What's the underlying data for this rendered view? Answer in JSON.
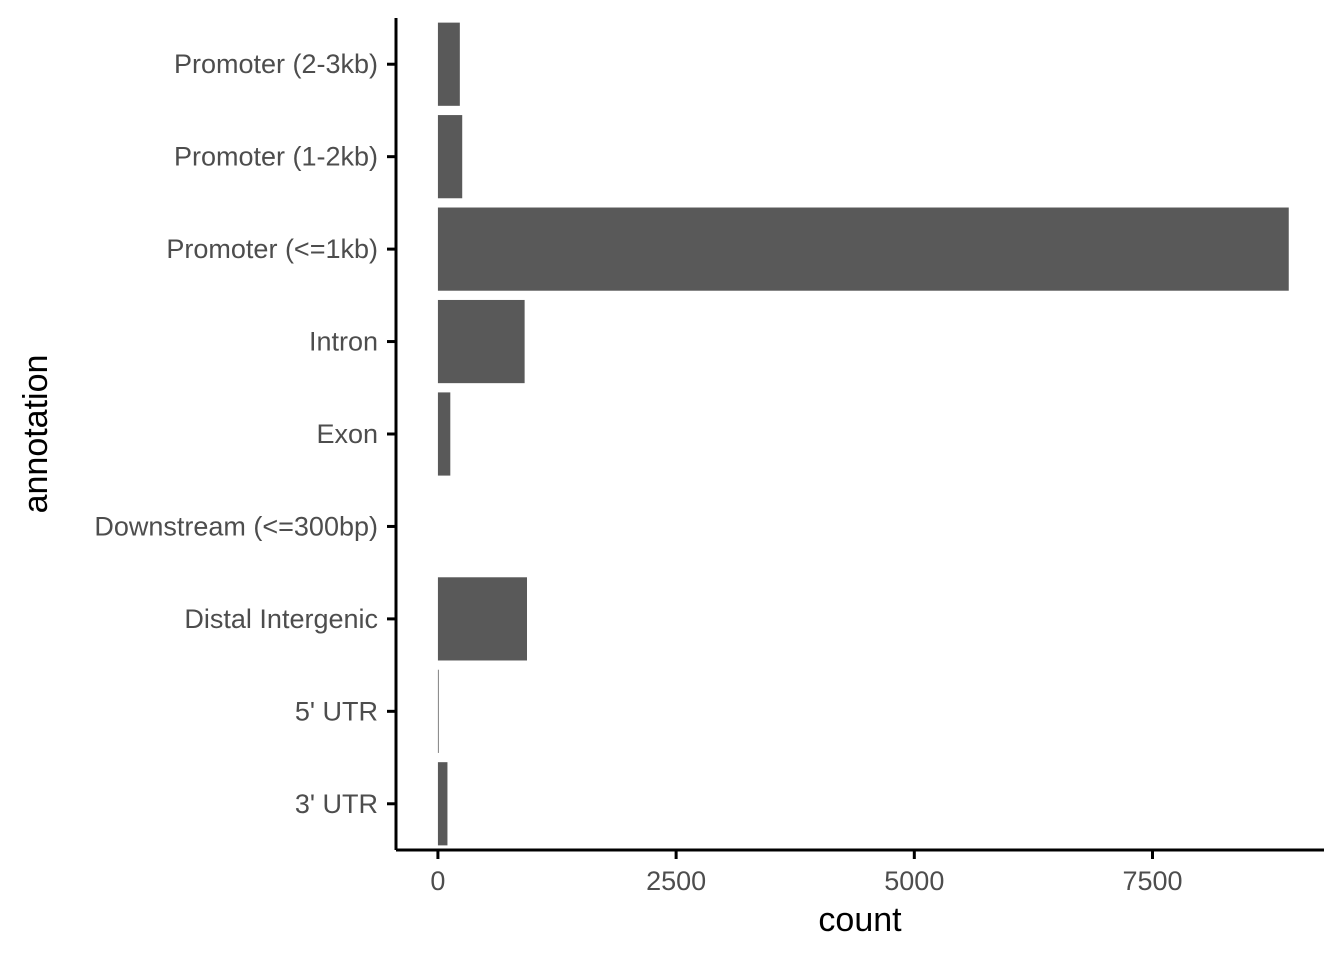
{
  "chart_data": {
    "type": "bar",
    "orientation": "horizontal",
    "categories": [
      "Promoter (2-3kb)",
      "Promoter (1-2kb)",
      "Promoter (<=1kb)",
      "Intron",
      "Exon",
      "Downstream (<=300bp)",
      "Distal Intergenic",
      "5' UTR",
      "3' UTR"
    ],
    "values": [
      230,
      255,
      8930,
      910,
      130,
      0,
      935,
      8,
      100
    ],
    "xlabel": "count",
    "ylabel": "annotation",
    "xlim": [
      -440,
      9300
    ],
    "xticks": [
      0,
      2500,
      5000,
      7500
    ],
    "xtick_labels": [
      "0",
      "2500",
      "5000",
      "7500"
    ],
    "grid": false,
    "bar_color": "#595959"
  }
}
